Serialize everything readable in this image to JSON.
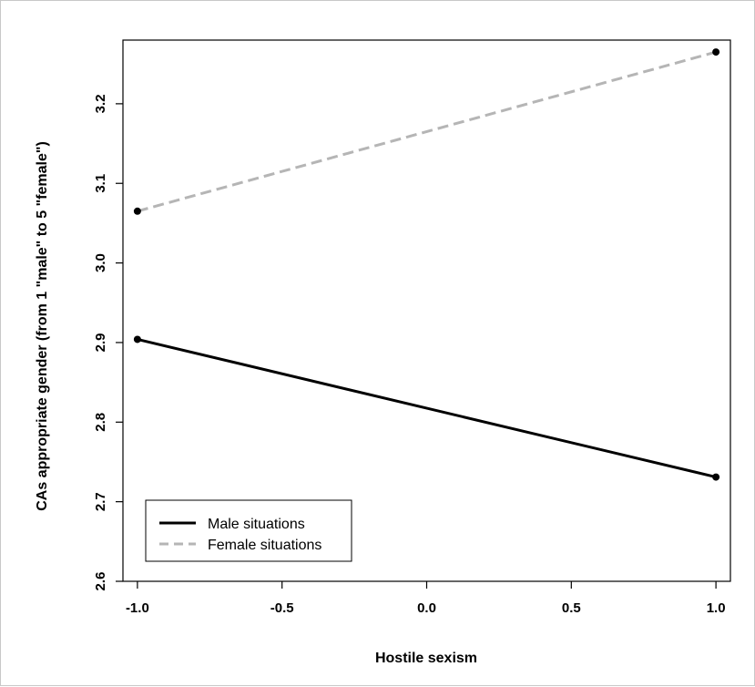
{
  "chart_data": {
    "type": "line",
    "xlabel": "Hostile sexism",
    "ylabel": "CAs appropriate gender (from 1 \"male\" to 5 \"female\")",
    "x": [
      -1.0,
      1.0
    ],
    "xlim": [
      -1.05,
      1.05
    ],
    "ylim": [
      2.6,
      3.28
    ],
    "x_ticks": [
      "-1.0",
      "-0.5",
      "0.0",
      "0.5",
      "1.0"
    ],
    "x_tick_values": [
      -1.0,
      -0.5,
      0.0,
      0.5,
      1.0
    ],
    "y_ticks": [
      "2.6",
      "2.7",
      "2.8",
      "2.9",
      "3.0",
      "3.1",
      "3.2"
    ],
    "y_tick_values": [
      2.6,
      2.7,
      2.8,
      2.9,
      3.0,
      3.1,
      3.2
    ],
    "grid": false,
    "legend_position": "bottom-left",
    "series": [
      {
        "name": "Male situations",
        "values": [
          2.904,
          2.731
        ],
        "color": "#000000",
        "style": "solid"
      },
      {
        "name": "Female situations",
        "values": [
          3.065,
          3.265
        ],
        "color": "#b5b5b5",
        "style": "dashed"
      }
    ]
  }
}
